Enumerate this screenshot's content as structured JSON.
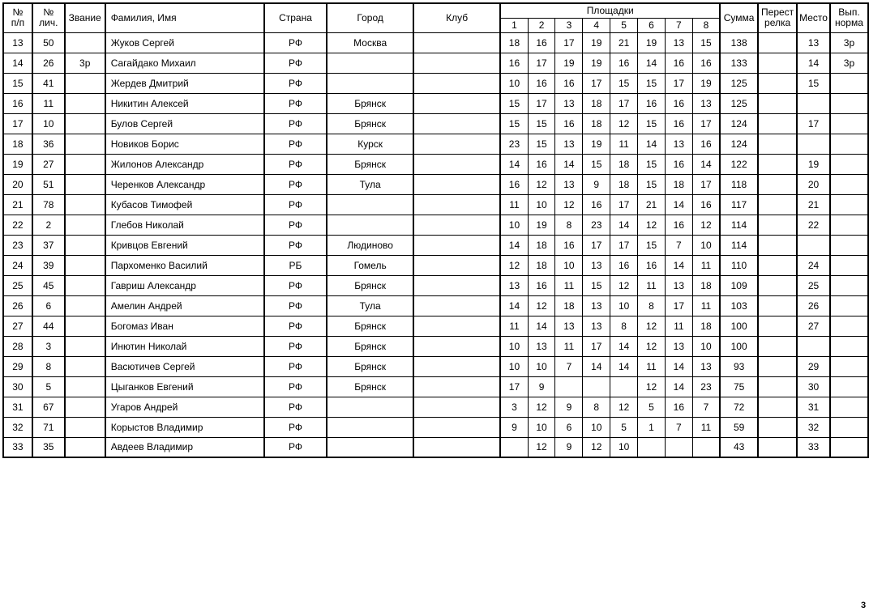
{
  "page": {
    "number": "3"
  },
  "colors": {
    "background": "#ffffff",
    "border": "#000000",
    "text": "#000000"
  },
  "table": {
    "headers": {
      "num": "№\nп/п",
      "personal": "№\nлич.",
      "rank": "Звание",
      "name": "Фамилия, Имя",
      "country": "Страна",
      "city": "Город",
      "club": "Клуб",
      "grounds_group": "Площадки",
      "grounds": [
        "1",
        "2",
        "3",
        "4",
        "5",
        "6",
        "7",
        "8"
      ],
      "sum": "Сумма",
      "shootoff": "Перест\nрелка",
      "place": "Место",
      "norm": "Вып.\nнорма"
    },
    "rows": [
      {
        "num": "13",
        "personal": "50",
        "rank": "",
        "name": "Жуков Сергей",
        "country": "РФ",
        "city": "Москва",
        "club": "",
        "scores": [
          "18",
          "16",
          "17",
          "19",
          "21",
          "19",
          "13",
          "15"
        ],
        "sum": "138",
        "shootoff": "",
        "place": "13",
        "norm": "3р"
      },
      {
        "num": "14",
        "personal": "26",
        "rank": "3р",
        "name": "Сагайдако Михаил",
        "country": "РФ",
        "city": "",
        "club": "",
        "scores": [
          "16",
          "17",
          "19",
          "19",
          "16",
          "14",
          "16",
          "16"
        ],
        "sum": "133",
        "shootoff": "",
        "place": "14",
        "norm": "3р"
      },
      {
        "num": "15",
        "personal": "41",
        "rank": "",
        "name": "Жердев Дмитрий",
        "country": "РФ",
        "city": "",
        "club": "",
        "scores": [
          "10",
          "16",
          "16",
          "17",
          "15",
          "15",
          "17",
          "19"
        ],
        "sum": "125",
        "shootoff": "",
        "place": "15",
        "norm": ""
      },
      {
        "num": "16",
        "personal": "11",
        "rank": "",
        "name": "Никитин Алексей",
        "country": "РФ",
        "city": "Брянск",
        "club": "",
        "scores": [
          "15",
          "17",
          "13",
          "18",
          "17",
          "16",
          "16",
          "13"
        ],
        "sum": "125",
        "shootoff": "",
        "place": "",
        "norm": ""
      },
      {
        "num": "17",
        "personal": "10",
        "rank": "",
        "name": "Булов Сергей",
        "country": "РФ",
        "city": "Брянск",
        "club": "",
        "scores": [
          "15",
          "15",
          "16",
          "18",
          "12",
          "15",
          "16",
          "17"
        ],
        "sum": "124",
        "shootoff": "",
        "place": "17",
        "norm": ""
      },
      {
        "num": "18",
        "personal": "36",
        "rank": "",
        "name": "Новиков Борис",
        "country": "РФ",
        "city": "Курск",
        "club": "",
        "scores": [
          "23",
          "15",
          "13",
          "19",
          "11",
          "14",
          "13",
          "16"
        ],
        "sum": "124",
        "shootoff": "",
        "place": "",
        "norm": ""
      },
      {
        "num": "19",
        "personal": "27",
        "rank": "",
        "name": "Жилонов Александр",
        "country": "РФ",
        "city": "Брянск",
        "club": "",
        "scores": [
          "14",
          "16",
          "14",
          "15",
          "18",
          "15",
          "16",
          "14"
        ],
        "sum": "122",
        "shootoff": "",
        "place": "19",
        "norm": ""
      },
      {
        "num": "20",
        "personal": "51",
        "rank": "",
        "name": "Черенков Александр",
        "country": "РФ",
        "city": "Тула",
        "club": "",
        "scores": [
          "16",
          "12",
          "13",
          "9",
          "18",
          "15",
          "18",
          "17"
        ],
        "sum": "118",
        "shootoff": "",
        "place": "20",
        "norm": ""
      },
      {
        "num": "21",
        "personal": "78",
        "rank": "",
        "name": "Кубасов Тимофей",
        "country": "РФ",
        "city": "",
        "club": "",
        "scores": [
          "11",
          "10",
          "12",
          "16",
          "17",
          "21",
          "14",
          "16"
        ],
        "sum": "117",
        "shootoff": "",
        "place": "21",
        "norm": ""
      },
      {
        "num": "22",
        "personal": "2",
        "rank": "",
        "name": "Глебов Николай",
        "country": "РФ",
        "city": "",
        "club": "",
        "scores": [
          "10",
          "19",
          "8",
          "23",
          "14",
          "12",
          "16",
          "12"
        ],
        "sum": "114",
        "shootoff": "",
        "place": "22",
        "norm": ""
      },
      {
        "num": "23",
        "personal": "37",
        "rank": "",
        "name": "Кривцов Евгений",
        "country": "РФ",
        "city": "Людиново",
        "club": "",
        "scores": [
          "14",
          "18",
          "16",
          "17",
          "17",
          "15",
          "7",
          "10"
        ],
        "sum": "114",
        "shootoff": "",
        "place": "",
        "norm": ""
      },
      {
        "num": "24",
        "personal": "39",
        "rank": "",
        "name": "Пархоменко Василий",
        "country": "РБ",
        "city": "Гомель",
        "club": "",
        "scores": [
          "12",
          "18",
          "10",
          "13",
          "16",
          "16",
          "14",
          "11"
        ],
        "sum": "110",
        "shootoff": "",
        "place": "24",
        "norm": ""
      },
      {
        "num": "25",
        "personal": "45",
        "rank": "",
        "name": "Гавриш Александр",
        "country": "РФ",
        "city": "Брянск",
        "club": "",
        "scores": [
          "13",
          "16",
          "11",
          "15",
          "12",
          "11",
          "13",
          "18"
        ],
        "sum": "109",
        "shootoff": "",
        "place": "25",
        "norm": ""
      },
      {
        "num": "26",
        "personal": "6",
        "rank": "",
        "name": "Амелин Андрей",
        "country": "РФ",
        "city": "Тула",
        "club": "",
        "scores": [
          "14",
          "12",
          "18",
          "13",
          "10",
          "8",
          "17",
          "11"
        ],
        "sum": "103",
        "shootoff": "",
        "place": "26",
        "norm": ""
      },
      {
        "num": "27",
        "personal": "44",
        "rank": "",
        "name": "Богомаз Иван",
        "country": "РФ",
        "city": "Брянск",
        "club": "",
        "scores": [
          "11",
          "14",
          "13",
          "13",
          "8",
          "12",
          "11",
          "18"
        ],
        "sum": "100",
        "shootoff": "",
        "place": "27",
        "norm": ""
      },
      {
        "num": "28",
        "personal": "3",
        "rank": "",
        "name": "Инютин Николай",
        "country": "РФ",
        "city": "Брянск",
        "club": "",
        "scores": [
          "10",
          "13",
          "11",
          "17",
          "14",
          "12",
          "13",
          "10"
        ],
        "sum": "100",
        "shootoff": "",
        "place": "",
        "norm": ""
      },
      {
        "num": "29",
        "personal": "8",
        "rank": "",
        "name": "Васютичев Сергей",
        "country": "РФ",
        "city": "Брянск",
        "club": "",
        "scores": [
          "10",
          "10",
          "7",
          "14",
          "14",
          "11",
          "14",
          "13"
        ],
        "sum": "93",
        "shootoff": "",
        "place": "29",
        "norm": ""
      },
      {
        "num": "30",
        "personal": "5",
        "rank": "",
        "name": "Цыганков Евгений",
        "country": "РФ",
        "city": "Брянск",
        "club": "",
        "scores": [
          "17",
          "9",
          "",
          "",
          "",
          "12",
          "14",
          "23"
        ],
        "sum": "75",
        "shootoff": "",
        "place": "30",
        "norm": ""
      },
      {
        "num": "31",
        "personal": "67",
        "rank": "",
        "name": "Угаров Андрей",
        "country": "РФ",
        "city": "",
        "club": "",
        "scores": [
          "3",
          "12",
          "9",
          "8",
          "12",
          "5",
          "16",
          "7"
        ],
        "sum": "72",
        "shootoff": "",
        "place": "31",
        "norm": ""
      },
      {
        "num": "32",
        "personal": "71",
        "rank": "",
        "name": "Корыстов Владимир",
        "country": "РФ",
        "city": "",
        "club": "",
        "scores": [
          "9",
          "10",
          "6",
          "10",
          "5",
          "1",
          "7",
          "11"
        ],
        "sum": "59",
        "shootoff": "",
        "place": "32",
        "norm": ""
      },
      {
        "num": "33",
        "personal": "35",
        "rank": "",
        "name": "Авдеев Владимир",
        "country": "РФ",
        "city": "",
        "club": "",
        "scores": [
          "",
          "12",
          "9",
          "12",
          "10",
          "",
          "",
          ""
        ],
        "sum": "43",
        "shootoff": "",
        "place": "33",
        "norm": ""
      }
    ]
  }
}
